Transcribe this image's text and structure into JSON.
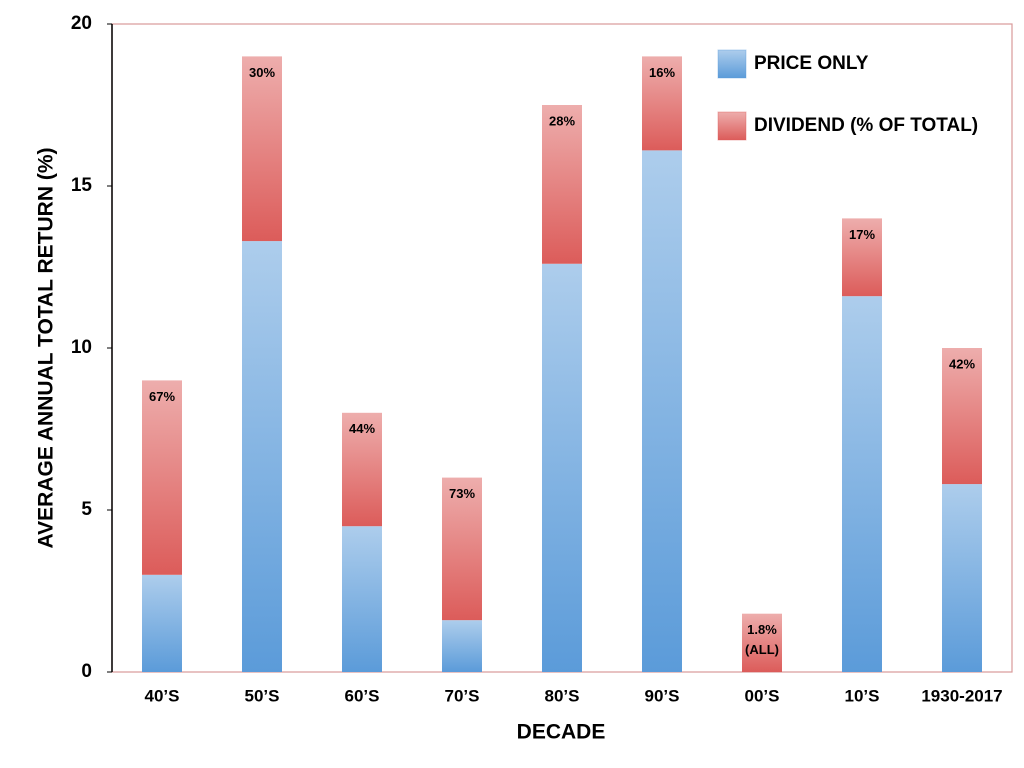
{
  "chart_data": {
    "type": "stacked_bar",
    "categories": [
      "40’S",
      "50’S",
      "60’S",
      "70’S",
      "80’S",
      "90’S",
      "00’S",
      "10’S",
      "1930-2017"
    ],
    "series": [
      {
        "name": "PRICE ONLY",
        "color": "#5b9bd9",
        "values": [
          3,
          13.3,
          4.5,
          1.6,
          12.6,
          16.1,
          0,
          11.6,
          5.8
        ]
      },
      {
        "name": "DIVIDEND (% OF TOTAL)",
        "color": "#dc5c5a",
        "values": [
          6,
          5.7,
          3.5,
          4.4,
          4.9,
          2.9,
          1.8,
          2.4,
          4.2
        ]
      }
    ],
    "bar_labels": [
      [
        "67%"
      ],
      [
        "30%"
      ],
      [
        "44%"
      ],
      [
        "73%"
      ],
      [
        "28%"
      ],
      [
        "16%"
      ],
      [
        "1.8%",
        "(ALL)"
      ],
      [
        "17%"
      ],
      [
        "42%"
      ]
    ],
    "xlabel": "DECADE",
    "ylabel": "AVERAGE  ANNUAL TOTAL RETURN (%)",
    "ylim": [
      0,
      20
    ],
    "yticks": [
      0,
      5,
      10,
      15,
      20
    ],
    "grid": false,
    "legend": "upper right"
  }
}
